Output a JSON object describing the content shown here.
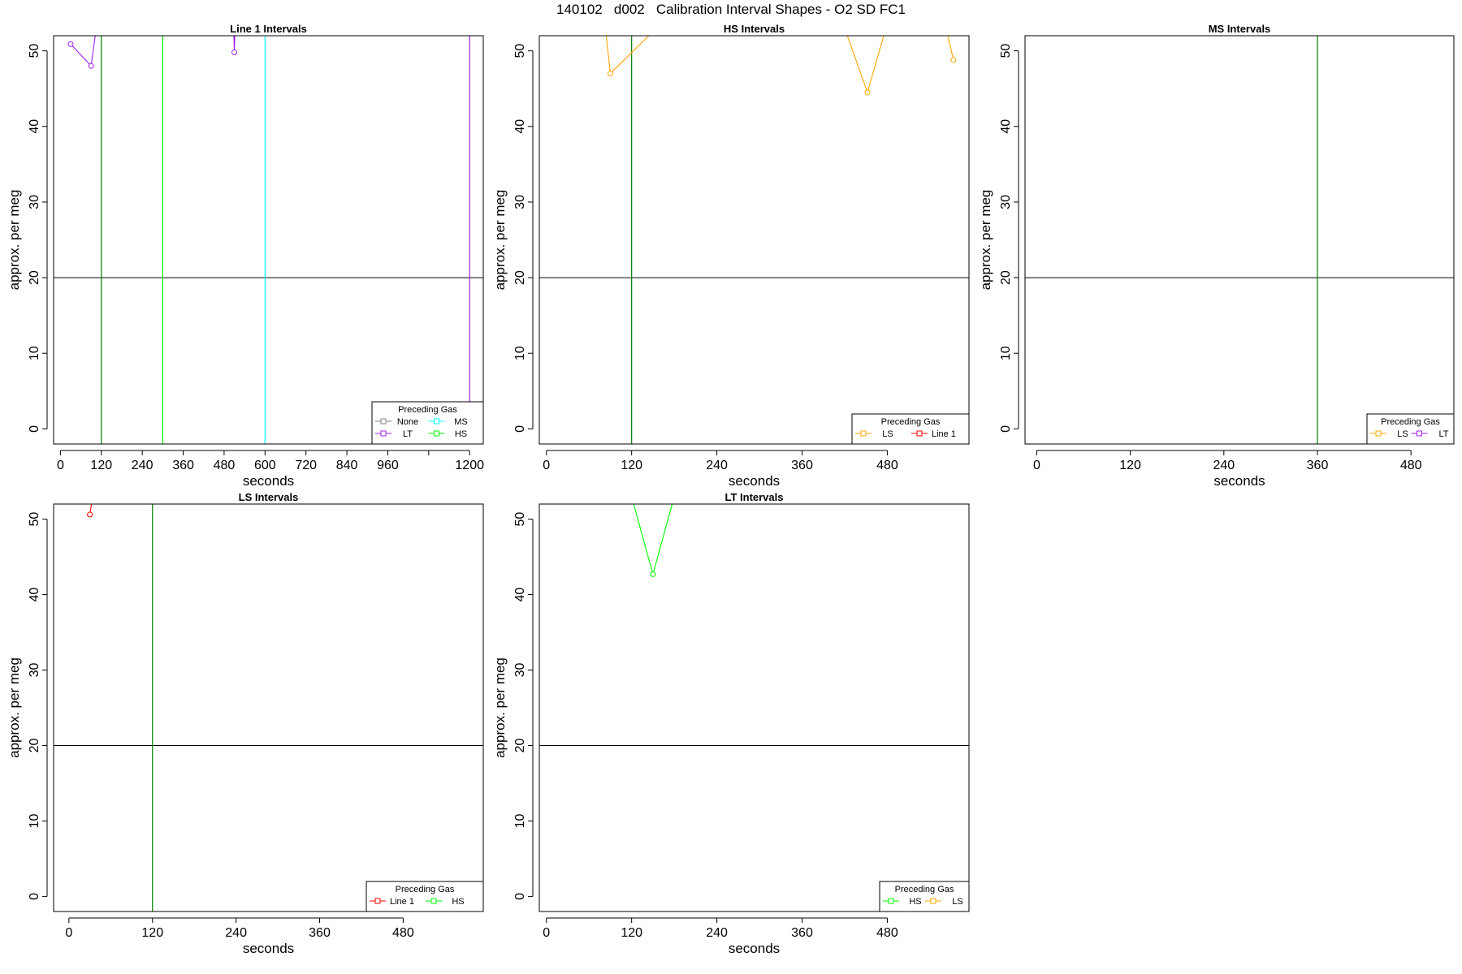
{
  "title": "140102   d002   Calibration Interval Shapes - O2 SD FC1",
  "colors": {
    "None": "#808080",
    "LT": "#a020f0",
    "MS": "#00ffff",
    "HS": "#00ff00",
    "LS": "#ffa500",
    "Line 1": "#ff0000",
    "reference_line": "#000000",
    "vertical_marker": "#008000"
  },
  "chart_data": [
    {
      "type": "line",
      "title": "Line 1 Intervals",
      "xlabel": "seconds",
      "ylabel": "approx. per meg",
      "xlim": [
        -20,
        1240
      ],
      "ylim": [
        -2,
        52
      ],
      "xticks": [
        0,
        120,
        240,
        360,
        480,
        600,
        720,
        840,
        960,
        1080,
        1200
      ],
      "xtick_labels": [
        "0",
        "120",
        "240",
        "360",
        "480",
        "600",
        "720",
        "840",
        "960",
        "",
        "1200"
      ],
      "yticks": [
        0,
        10,
        20,
        30,
        40,
        50
      ],
      "hline": 20,
      "vlines": [
        {
          "x": 120,
          "color": "vertical_marker"
        },
        {
          "x": 300,
          "color": "HS"
        },
        {
          "x": 600,
          "color": "MS"
        },
        {
          "x": 1200,
          "color": "LT"
        }
      ],
      "series": [
        {
          "name": "LT",
          "x": [
            30,
            90,
            105
          ],
          "y": [
            50.9,
            48.0,
            53
          ]
        },
        {
          "name": "LT",
          "x": [
            508,
            510,
            512
          ],
          "y": [
            53,
            49.8,
            53
          ]
        }
      ],
      "legend": {
        "title": "Preceding Gas",
        "position": "bottom-right",
        "columns": 2,
        "entries": [
          "None",
          "LT",
          "MS",
          "HS"
        ]
      }
    },
    {
      "type": "line",
      "title": "HS Intervals",
      "xlabel": "seconds",
      "ylabel": "approx. per meg",
      "xlim": [
        -10,
        595
      ],
      "ylim": [
        -2,
        52
      ],
      "xticks": [
        0,
        120,
        240,
        360,
        480
      ],
      "xtick_labels": [
        "0",
        "120",
        "240",
        "360",
        "480"
      ],
      "yticks": [
        0,
        10,
        20,
        30,
        40,
        50
      ],
      "hline": 20,
      "vlines": [
        {
          "x": 120,
          "color": "vertical_marker"
        }
      ],
      "series": [
        {
          "name": "LS",
          "x": [
            83,
            90,
            155
          ],
          "y": [
            53,
            47.0,
            53
          ]
        },
        {
          "name": "LS",
          "x": [
            420,
            452,
            478
          ],
          "y": [
            53,
            44.5,
            53
          ]
        },
        {
          "name": "LS",
          "x": [
            563,
            573
          ],
          "y": [
            53,
            48.8
          ]
        }
      ],
      "legend": {
        "title": "Preceding Gas",
        "position": "bottom-right",
        "columns": 2,
        "entries": [
          "LS",
          "Line 1"
        ]
      }
    },
    {
      "type": "line",
      "title": "MS Intervals",
      "xlabel": "seconds",
      "ylabel": "approx. per meg",
      "xlim": [
        -15,
        535
      ],
      "ylim": [
        -2,
        52
      ],
      "xticks": [
        0,
        120,
        240,
        360,
        480
      ],
      "xtick_labels": [
        "0",
        "120",
        "240",
        "360",
        "480"
      ],
      "yticks": [
        0,
        10,
        20,
        30,
        40,
        50
      ],
      "hline": 20,
      "vlines": [
        {
          "x": 360,
          "color": "vertical_marker"
        }
      ],
      "series": [],
      "legend": {
        "title": "Preceding Gas",
        "position": "bottom-right",
        "columns": 2,
        "entries": [
          "LS",
          "LT"
        ]
      }
    },
    {
      "type": "line",
      "title": "LS Intervals",
      "xlabel": "seconds",
      "ylabel": "approx. per meg",
      "xlim": [
        -22,
        595
      ],
      "ylim": [
        -2,
        52
      ],
      "xticks": [
        0,
        120,
        240,
        360,
        480
      ],
      "xtick_labels": [
        "0",
        "120",
        "240",
        "360",
        "480"
      ],
      "yticks": [
        0,
        10,
        20,
        30,
        40,
        50
      ],
      "hline": 20,
      "vlines": [
        {
          "x": 120,
          "color": "vertical_marker"
        }
      ],
      "series": [
        {
          "name": "Line 1",
          "x": [
            30,
            34
          ],
          "y": [
            50.6,
            53
          ]
        }
      ],
      "legend": {
        "title": "Preceding Gas",
        "position": "bottom-right",
        "columns": 2,
        "entries": [
          "Line 1",
          "HS"
        ]
      }
    },
    {
      "type": "line",
      "title": "LT Intervals",
      "xlabel": "seconds",
      "ylabel": "approx. per meg",
      "xlim": [
        -10,
        595
      ],
      "ylim": [
        -2,
        52
      ],
      "xticks": [
        0,
        120,
        240,
        360,
        480
      ],
      "xtick_labels": [
        "0",
        "120",
        "240",
        "360",
        "480"
      ],
      "yticks": [
        0,
        10,
        20,
        30,
        40,
        50
      ],
      "hline": 20,
      "vlines": [],
      "series": [
        {
          "name": "HS",
          "x": [
            120,
            150,
            180
          ],
          "y": [
            53,
            42.7,
            53
          ]
        }
      ],
      "legend": {
        "title": "Preceding Gas",
        "position": "bottom-right",
        "columns": 2,
        "entries": [
          "HS",
          "LS"
        ]
      }
    }
  ]
}
